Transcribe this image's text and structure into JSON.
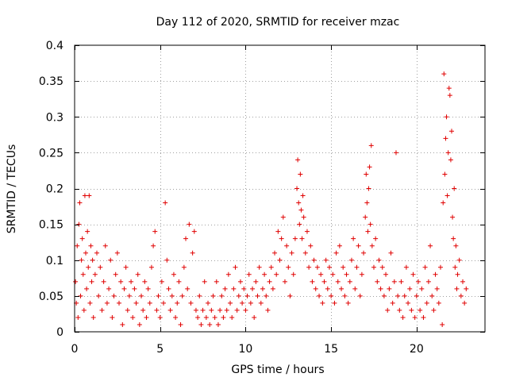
{
  "chart_data": {
    "type": "scatter",
    "title": "Day 112 of 2020, SRMTID for receiver mzac",
    "xlabel": "GPS time / hours",
    "ylabel": "SRMTID / TECUs",
    "xlim": [
      0,
      24
    ],
    "ylim": [
      0,
      0.4
    ],
    "x_ticks": [
      0,
      5,
      10,
      15,
      20
    ],
    "x_tick_labels": [
      "0",
      "5",
      "10",
      "15",
      "20"
    ],
    "y_ticks": [
      0,
      0.05,
      0.1,
      0.15,
      0.2,
      0.25,
      0.3,
      0.35,
      0.4
    ],
    "y_tick_labels": [
      "0",
      "0.05",
      "0.1",
      "0.15",
      "0.2",
      "0.25",
      "0.3",
      "0.35",
      "0.4"
    ],
    "grid": true,
    "marker": "plus",
    "color": "#e00000",
    "series": [
      {
        "name": "SRMTID",
        "points": [
          [
            0.05,
            0.07
          ],
          [
            0.1,
            0.04
          ],
          [
            0.15,
            0.12
          ],
          [
            0.2,
            0.02
          ],
          [
            0.25,
            0.15
          ],
          [
            0.3,
            0.18
          ],
          [
            0.35,
            0.05
          ],
          [
            0.4,
            0.1
          ],
          [
            0.45,
            0.13
          ],
          [
            0.5,
            0.08
          ],
          [
            0.55,
            0.03
          ],
          [
            0.6,
            0.19
          ],
          [
            0.65,
            0.11
          ],
          [
            0.7,
            0.06
          ],
          [
            0.75,
            0.14
          ],
          [
            0.8,
            0.09
          ],
          [
            0.85,
            0.19
          ],
          [
            0.9,
            0.04
          ],
          [
            0.95,
            0.12
          ],
          [
            1.0,
            0.07
          ],
          [
            1.05,
            0.1
          ],
          [
            1.1,
            0.02
          ],
          [
            1.2,
            0.08
          ],
          [
            1.3,
            0.11
          ],
          [
            1.4,
            0.05
          ],
          [
            1.5,
            0.09
          ],
          [
            1.6,
            0.03
          ],
          [
            1.7,
            0.07
          ],
          [
            1.8,
            0.12
          ],
          [
            1.9,
            0.04
          ],
          [
            2.0,
            0.06
          ],
          [
            2.1,
            0.1
          ],
          [
            2.2,
            0.02
          ],
          [
            2.3,
            0.05
          ],
          [
            2.4,
            0.08
          ],
          [
            2.5,
            0.11
          ],
          [
            2.6,
            0.04
          ],
          [
            2.7,
            0.07
          ],
          [
            2.8,
            0.01
          ],
          [
            2.9,
            0.06
          ],
          [
            3.0,
            0.09
          ],
          [
            3.1,
            0.03
          ],
          [
            3.2,
            0.05
          ],
          [
            3.3,
            0.07
          ],
          [
            3.4,
            0.02
          ],
          [
            3.5,
            0.06
          ],
          [
            3.6,
            0.04
          ],
          [
            3.7,
            0.08
          ],
          [
            3.8,
            0.01
          ],
          [
            3.9,
            0.05
          ],
          [
            4.0,
            0.03
          ],
          [
            4.1,
            0.07
          ],
          [
            4.2,
            0.02
          ],
          [
            4.3,
            0.06
          ],
          [
            4.4,
            0.04
          ],
          [
            4.5,
            0.09
          ],
          [
            4.6,
            0.12
          ],
          [
            4.7,
            0.14
          ],
          [
            4.8,
            0.03
          ],
          [
            4.9,
            0.05
          ],
          [
            5.0,
            0.02
          ],
          [
            5.1,
            0.07
          ],
          [
            5.2,
            0.04
          ],
          [
            5.3,
            0.18
          ],
          [
            5.4,
            0.1
          ],
          [
            5.5,
            0.06
          ],
          [
            5.6,
            0.03
          ],
          [
            5.7,
            0.05
          ],
          [
            5.8,
            0.08
          ],
          [
            5.9,
            0.02
          ],
          [
            6.0,
            0.04
          ],
          [
            6.1,
            0.07
          ],
          [
            6.2,
            0.01
          ],
          [
            6.3,
            0.05
          ],
          [
            6.4,
            0.09
          ],
          [
            6.5,
            0.13
          ],
          [
            6.6,
            0.06
          ],
          [
            6.7,
            0.15
          ],
          [
            6.8,
            0.04
          ],
          [
            6.9,
            0.11
          ],
          [
            7.0,
            0.14
          ],
          [
            7.1,
            0.03
          ],
          [
            7.2,
            0.02
          ],
          [
            7.3,
            0.05
          ],
          [
            7.4,
            0.01
          ],
          [
            7.5,
            0.03
          ],
          [
            7.6,
            0.07
          ],
          [
            7.7,
            0.02
          ],
          [
            7.8,
            0.04
          ],
          [
            7.9,
            0.01
          ],
          [
            8.0,
            0.03
          ],
          [
            8.1,
            0.05
          ],
          [
            8.2,
            0.02
          ],
          [
            8.3,
            0.07
          ],
          [
            8.4,
            0.01
          ],
          [
            8.5,
            0.03
          ],
          [
            8.6,
            0.05
          ],
          [
            8.7,
            0.02
          ],
          [
            8.8,
            0.06
          ],
          [
            8.9,
            0.03
          ],
          [
            9.0,
            0.08
          ],
          [
            9.1,
            0.04
          ],
          [
            9.2,
            0.02
          ],
          [
            9.3,
            0.06
          ],
          [
            9.4,
            0.09
          ],
          [
            9.5,
            0.03
          ],
          [
            9.6,
            0.05
          ],
          [
            9.7,
            0.07
          ],
          [
            9.8,
            0.04
          ],
          [
            9.9,
            0.06
          ],
          [
            10.0,
            0.03
          ],
          [
            10.1,
            0.05
          ],
          [
            10.2,
            0.08
          ],
          [
            10.3,
            0.04
          ],
          [
            10.4,
            0.06
          ],
          [
            10.5,
            0.02
          ],
          [
            10.6,
            0.07
          ],
          [
            10.7,
            0.05
          ],
          [
            10.8,
            0.09
          ],
          [
            10.9,
            0.04
          ],
          [
            11.0,
            0.06
          ],
          [
            11.1,
            0.08
          ],
          [
            11.2,
            0.05
          ],
          [
            11.3,
            0.03
          ],
          [
            11.4,
            0.07
          ],
          [
            11.5,
            0.09
          ],
          [
            11.6,
            0.06
          ],
          [
            11.7,
            0.11
          ],
          [
            11.8,
            0.08
          ],
          [
            11.9,
            0.14
          ],
          [
            12.0,
            0.1
          ],
          [
            12.1,
            0.13
          ],
          [
            12.2,
            0.16
          ],
          [
            12.3,
            0.07
          ],
          [
            12.4,
            0.12
          ],
          [
            12.5,
            0.09
          ],
          [
            12.6,
            0.05
          ],
          [
            12.7,
            0.11
          ],
          [
            12.8,
            0.08
          ],
          [
            12.9,
            0.13
          ],
          [
            13.0,
            0.2
          ],
          [
            13.05,
            0.24
          ],
          [
            13.1,
            0.18
          ],
          [
            13.15,
            0.15
          ],
          [
            13.2,
            0.22
          ],
          [
            13.25,
            0.17
          ],
          [
            13.3,
            0.13
          ],
          [
            13.35,
            0.19
          ],
          [
            13.4,
            0.16
          ],
          [
            13.5,
            0.11
          ],
          [
            13.6,
            0.14
          ],
          [
            13.7,
            0.09
          ],
          [
            13.8,
            0.12
          ],
          [
            13.9,
            0.07
          ],
          [
            14.0,
            0.1
          ],
          [
            14.1,
            0.06
          ],
          [
            14.2,
            0.09
          ],
          [
            14.3,
            0.05
          ],
          [
            14.4,
            0.08
          ],
          [
            14.5,
            0.04
          ],
          [
            14.6,
            0.07
          ],
          [
            14.7,
            0.1
          ],
          [
            14.8,
            0.06
          ],
          [
            14.9,
            0.09
          ],
          [
            15.0,
            0.05
          ],
          [
            15.1,
            0.08
          ],
          [
            15.2,
            0.04
          ],
          [
            15.3,
            0.11
          ],
          [
            15.4,
            0.07
          ],
          [
            15.5,
            0.12
          ],
          [
            15.6,
            0.06
          ],
          [
            15.7,
            0.09
          ],
          [
            15.8,
            0.05
          ],
          [
            15.9,
            0.08
          ],
          [
            16.0,
            0.04
          ],
          [
            16.1,
            0.07
          ],
          [
            16.2,
            0.1
          ],
          [
            16.3,
            0.13
          ],
          [
            16.4,
            0.06
          ],
          [
            16.5,
            0.09
          ],
          [
            16.6,
            0.12
          ],
          [
            16.7,
            0.05
          ],
          [
            16.8,
            0.08
          ],
          [
            16.9,
            0.11
          ],
          [
            17.0,
            0.16
          ],
          [
            17.05,
            0.22
          ],
          [
            17.1,
            0.18
          ],
          [
            17.15,
            0.14
          ],
          [
            17.2,
            0.2
          ],
          [
            17.25,
            0.23
          ],
          [
            17.3,
            0.15
          ],
          [
            17.35,
            0.26
          ],
          [
            17.4,
            0.12
          ],
          [
            17.5,
            0.09
          ],
          [
            17.6,
            0.13
          ],
          [
            17.7,
            0.07
          ],
          [
            17.8,
            0.1
          ],
          [
            17.9,
            0.06
          ],
          [
            18.0,
            0.09
          ],
          [
            18.1,
            0.05
          ],
          [
            18.2,
            0.08
          ],
          [
            18.3,
            0.03
          ],
          [
            18.4,
            0.06
          ],
          [
            18.5,
            0.11
          ],
          [
            18.6,
            0.04
          ],
          [
            18.7,
            0.07
          ],
          [
            18.8,
            0.25
          ],
          [
            18.9,
            0.05
          ],
          [
            19.0,
            0.03
          ],
          [
            19.1,
            0.07
          ],
          [
            19.2,
            0.02
          ],
          [
            19.3,
            0.05
          ],
          [
            19.4,
            0.09
          ],
          [
            19.5,
            0.04
          ],
          [
            19.6,
            0.06
          ],
          [
            19.7,
            0.03
          ],
          [
            19.8,
            0.08
          ],
          [
            19.9,
            0.02
          ],
          [
            20.0,
            0.05
          ],
          [
            20.1,
            0.07
          ],
          [
            20.2,
            0.03
          ],
          [
            20.3,
            0.06
          ],
          [
            20.4,
            0.02
          ],
          [
            20.5,
            0.09
          ],
          [
            20.6,
            0.04
          ],
          [
            20.7,
            0.07
          ],
          [
            20.8,
            0.12
          ],
          [
            20.9,
            0.05
          ],
          [
            21.0,
            0.03
          ],
          [
            21.1,
            0.08
          ],
          [
            21.2,
            0.06
          ],
          [
            21.3,
            0.04
          ],
          [
            21.4,
            0.09
          ],
          [
            21.5,
            0.01
          ],
          [
            21.55,
            0.18
          ],
          [
            21.6,
            0.36
          ],
          [
            21.65,
            0.22
          ],
          [
            21.7,
            0.27
          ],
          [
            21.75,
            0.3
          ],
          [
            21.8,
            0.19
          ],
          [
            21.85,
            0.25
          ],
          [
            21.9,
            0.34
          ],
          [
            21.95,
            0.33
          ],
          [
            22.0,
            0.24
          ],
          [
            22.05,
            0.28
          ],
          [
            22.1,
            0.16
          ],
          [
            22.15,
            0.13
          ],
          [
            22.2,
            0.2
          ],
          [
            22.25,
            0.09
          ],
          [
            22.3,
            0.12
          ],
          [
            22.35,
            0.06
          ],
          [
            22.4,
            0.08
          ],
          [
            22.5,
            0.1
          ],
          [
            22.6,
            0.05
          ],
          [
            22.7,
            0.07
          ],
          [
            22.8,
            0.04
          ],
          [
            22.9,
            0.06
          ]
        ]
      }
    ]
  }
}
